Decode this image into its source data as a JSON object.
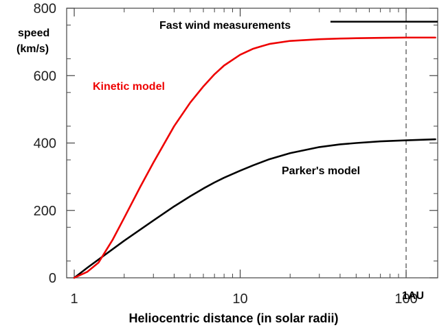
{
  "chart_data": {
    "type": "line",
    "title": "",
    "xlabel": "Heliocentric distance (in solar radii)",
    "ylabel_line1": "speed",
    "ylabel_line2": "(km/s)",
    "xscale": "log",
    "xlim": [
      0.9,
      155
    ],
    "ylim": [
      0,
      800
    ],
    "grid": false,
    "x_ticks": [
      {
        "value": 1,
        "label": "1"
      },
      {
        "value": 10,
        "label": "10"
      },
      {
        "value": 100,
        "label": "100"
      }
    ],
    "y_ticks": [
      {
        "value": 0,
        "label": "0"
      },
      {
        "value": 200,
        "label": "200"
      },
      {
        "value": 400,
        "label": "400"
      },
      {
        "value": 600,
        "label": "600"
      },
      {
        "value": 800,
        "label": "800"
      }
    ],
    "series": [
      {
        "name": "Kinetic model",
        "color": "#ee0000",
        "x": [
          1,
          1.2,
          1.4,
          1.7,
          2,
          2.5,
          3,
          4,
          5,
          6,
          7,
          8,
          10,
          12,
          15,
          20,
          30,
          40,
          50,
          70,
          100,
          150
        ],
        "y": [
          0,
          18,
          45,
          112,
          178,
          270,
          342,
          450,
          520,
          568,
          604,
          630,
          662,
          680,
          694,
          703,
          708,
          710,
          711,
          712,
          713,
          713
        ]
      },
      {
        "name": "Parker's model",
        "color": "#000000",
        "x": [
          1,
          1.2,
          1.5,
          2,
          3,
          4,
          5,
          6,
          7,
          8,
          10,
          12,
          15,
          20,
          30,
          40,
          50,
          70,
          100,
          150
        ],
        "y": [
          0,
          30,
          65,
          110,
          170,
          212,
          242,
          265,
          283,
          297,
          318,
          334,
          352,
          370,
          388,
          396,
          400,
          405,
          408,
          411
        ]
      }
    ],
    "annotations": {
      "kinetic_label": "Kinetic model",
      "parker_label": "Parker's model",
      "fast_wind_label": "Fast wind measurements",
      "fast_wind_value": 760,
      "fast_wind_x": [
        35,
        155
      ],
      "au_label": "1AU",
      "au_x": 100
    },
    "colors": {
      "kinetic": "#ee0000",
      "parker": "#000000",
      "axes": "#444444"
    }
  }
}
